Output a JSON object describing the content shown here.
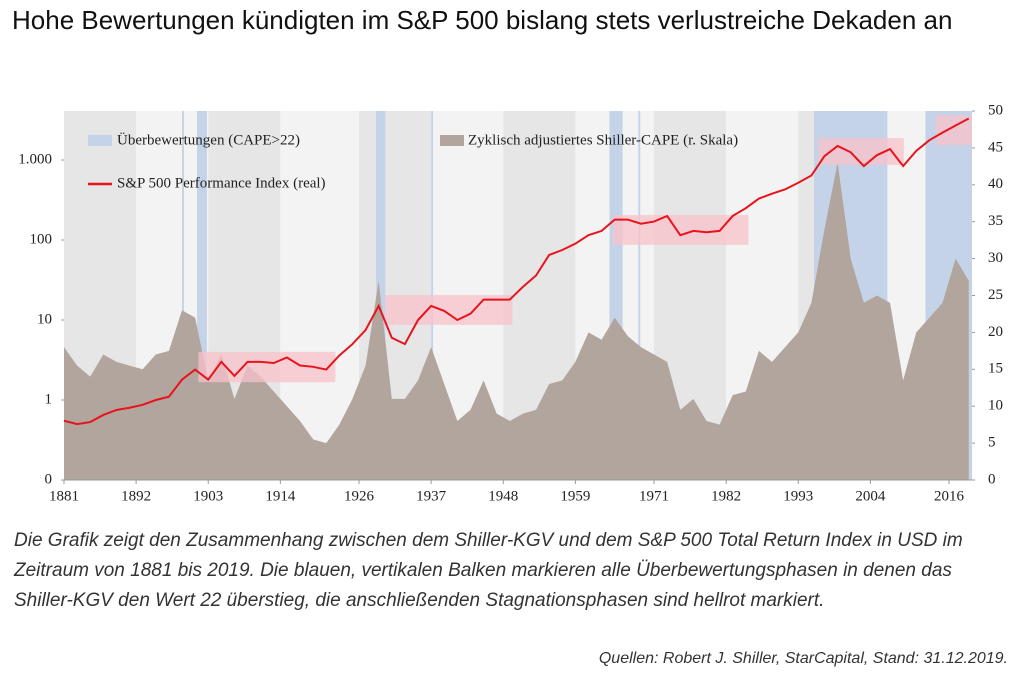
{
  "chart_data": {
    "type": "line",
    "title": "Hohe Bewertungen kündigten im S&P 500 bislang stets verlustreiche Dekaden an",
    "xlim": [
      1881,
      2019.5
    ],
    "xticks": [
      1881,
      1892,
      1903,
      1914,
      1926,
      1937,
      1948,
      1959,
      1971,
      1982,
      1993,
      2004,
      2016
    ],
    "ylim": [
      0.1,
      4100
    ],
    "ylog": true,
    "yticks": [
      {
        "value": 0.1,
        "label": "0"
      },
      1,
      10,
      100,
      {
        "value": 1000,
        "label": "1.000"
      }
    ],
    "y2lim": [
      0,
      50
    ],
    "y2ticks": [
      0,
      5,
      10,
      15,
      20,
      25,
      30,
      35,
      40,
      45,
      50
    ],
    "x": [
      1881,
      1883,
      1885,
      1887,
      1889,
      1891,
      1893,
      1895,
      1897,
      1899,
      1901,
      1903,
      1905,
      1907,
      1909,
      1911,
      1913,
      1915,
      1917,
      1919,
      1921,
      1923,
      1925,
      1927,
      1929,
      1931,
      1933,
      1935,
      1937,
      1939,
      1941,
      1943,
      1945,
      1947,
      1949,
      1951,
      1953,
      1955,
      1957,
      1959,
      1961,
      1963,
      1965,
      1967,
      1969,
      1971,
      1973,
      1975,
      1977,
      1979,
      1981,
      1983,
      1985,
      1987,
      1989,
      1991,
      1993,
      1995,
      1997,
      1999,
      2001,
      2003,
      2005,
      2007,
      2009,
      2011,
      2013,
      2015,
      2017,
      2019
    ],
    "series": [
      {
        "name": "Zyklisch adjustiertes Shiller-CAPE (r. Skala)",
        "type": "area",
        "axis": "y2",
        "color": "#b1a59e",
        "values": [
          18,
          15.5,
          14,
          17,
          16,
          15.5,
          15,
          17,
          17.5,
          23,
          22,
          13.5,
          17,
          11,
          15.5,
          14,
          12,
          10,
          8,
          5.5,
          5,
          7.5,
          11,
          15.5,
          27,
          11,
          11,
          13.5,
          18,
          13,
          8,
          9.5,
          13.5,
          9,
          8,
          9,
          9.5,
          13,
          13.5,
          16,
          20,
          19,
          22,
          19.5,
          18,
          17,
          16,
          9.5,
          11,
          8,
          7.5,
          11.5,
          12,
          17.5,
          16,
          18,
          20,
          24,
          34,
          43,
          30,
          24,
          25,
          24,
          13.5,
          20,
          22,
          24,
          30,
          27
        ]
      },
      {
        "name": "S&P 500 Performance Index (real)",
        "type": "line",
        "color": "#e8141c",
        "values": [
          0.55,
          0.5,
          0.53,
          0.65,
          0.75,
          0.8,
          0.87,
          1.0,
          1.1,
          1.8,
          2.4,
          1.8,
          3.0,
          2.0,
          3.0,
          3.0,
          2.9,
          3.4,
          2.7,
          2.6,
          2.4,
          3.6,
          5,
          7.5,
          15,
          6,
          5,
          10,
          15,
          13,
          10,
          12,
          18,
          18,
          18,
          26,
          36,
          65,
          75,
          90,
          115,
          130,
          180,
          180,
          160,
          170,
          200,
          115,
          130,
          125,
          130,
          200,
          250,
          330,
          380,
          430,
          520,
          640,
          1120,
          1500,
          1250,
          840,
          1150,
          1370,
          840,
          1300,
          1770,
          2200,
          2700,
          3300
        ]
      }
    ],
    "overvaluation": {
      "label": "Überbewertungen (CAPE>22)",
      "color": "#c5d3e8",
      "periods": [
        [
          1899,
          1899.3
        ],
        [
          1901.3,
          1902.8
        ],
        [
          1928.6,
          1930
        ],
        [
          1937,
          1937.3
        ],
        [
          1964.2,
          1966.2
        ],
        [
          1968.6,
          1968.9
        ],
        [
          1995.4,
          2006.6
        ],
        [
          2012.4,
          2019.5
        ]
      ]
    },
    "stagnation": {
      "color": "#f8c2ca",
      "boxes": [
        {
          "from": 1901.5,
          "to": 1922.4,
          "low": 1.67,
          "high": 4.0
        },
        {
          "from": 1930,
          "to": 1949.4,
          "low": 8.7,
          "high": 20.5
        },
        {
          "from": 1964.7,
          "to": 1985.4,
          "low": 87,
          "high": 205
        },
        {
          "from": 1996.1,
          "to": 2009.1,
          "low": 870,
          "high": 1880
        },
        {
          "from": 2014,
          "to": 2019.5,
          "low": 1540,
          "high": 3600
        }
      ]
    },
    "caption": "Die Grafik zeigt den Zusammenhang zwischen dem Shiller-KGV und dem S&P 500 Total Return Index in USD im Zeitraum von 1881 bis 2019. Die blauen, vertikalen Balken markieren alle Überbewertungsphasen in denen das Shiller-KGV den Wert 22 überstieg, die anschließenden Stagnationsphasen sind hellrot markiert.",
    "source": "Quellen: Robert J. Shiller, StarCapital, Stand: 31.12.2019."
  }
}
